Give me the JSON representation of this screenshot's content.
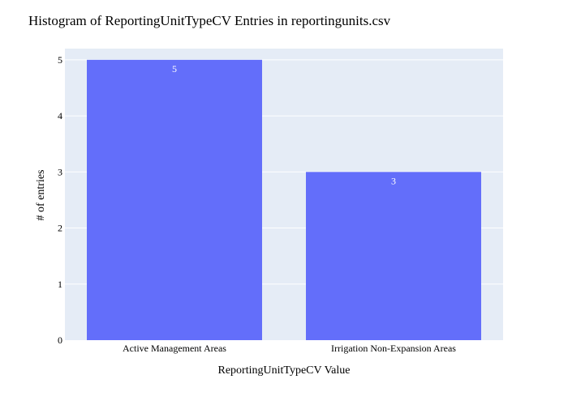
{
  "chart_data": {
    "type": "bar",
    "title": "Histogram of ReportingUnitTypeCV Entries in reportingunits.csv",
    "xlabel": "ReportingUnitTypeCV Value",
    "ylabel": "# of entries",
    "categories": [
      "Active Management Areas",
      "Irrigation Non-Expansion Areas"
    ],
    "values": [
      5,
      3
    ],
    "data_labels": [
      "5",
      "3"
    ],
    "ylim": [
      0,
      5.2
    ],
    "yticks": [
      0,
      1,
      2,
      3,
      4,
      5
    ],
    "ytick_labels": [
      "0",
      "1",
      "2",
      "3",
      "4",
      "5"
    ],
    "grid": true,
    "legend": "none",
    "colors": {
      "bar": "#636efa",
      "plot_background": "#e5ecf6",
      "paper_background": "#ffffff",
      "grid": "#ffffff",
      "text": "#2a3f5f",
      "data_label": "#ffffff"
    }
  }
}
